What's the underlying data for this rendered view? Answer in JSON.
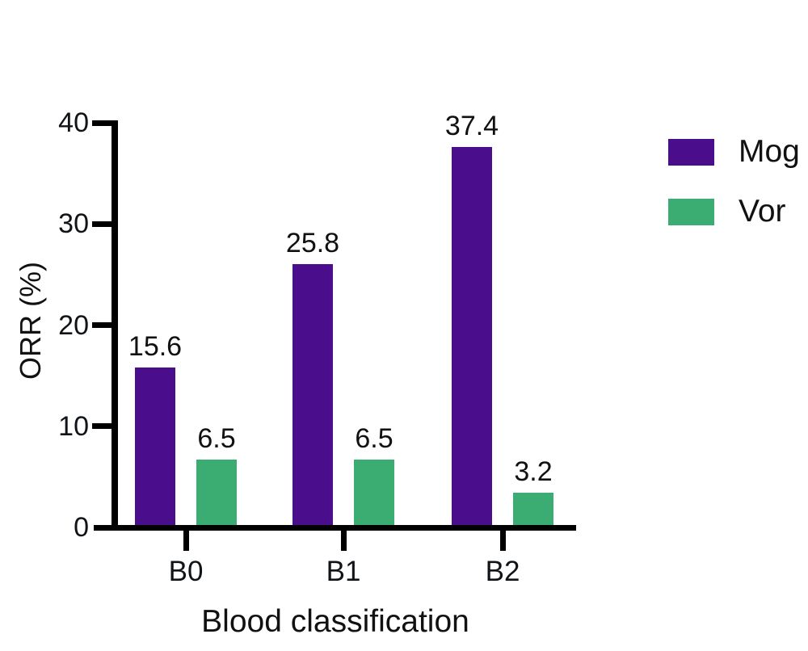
{
  "chart_data": {
    "type": "bar",
    "title": "",
    "categories": [
      "B0",
      "B1",
      "B2"
    ],
    "series": [
      {
        "name": "Mog",
        "color": "#4A0E8C",
        "values": [
          15.6,
          25.8,
          37.4
        ]
      },
      {
        "name": "Vor",
        "color": "#3CAD72",
        "values": [
          6.5,
          6.5,
          3.2
        ]
      }
    ],
    "value_labels": [
      [
        "15.6",
        "25.8",
        "37.4"
      ],
      [
        "6.5",
        "6.5",
        "3.2"
      ]
    ],
    "xlabel": "Blood classification",
    "ylabel": "ORR  (%)",
    "ylim": [
      0,
      40
    ],
    "yticks": [
      0,
      10,
      20,
      30,
      40
    ],
    "ytick_labels": [
      "0",
      "10",
      "20",
      "30",
      "40"
    ],
    "grid": false,
    "legend_position": "right",
    "bar_labels_shown": true
  },
  "colors": {
    "axis": "#000000",
    "text": "#111111",
    "background": "#ffffff",
    "mog": "#4A0E8C",
    "vor": "#3CAD72"
  }
}
